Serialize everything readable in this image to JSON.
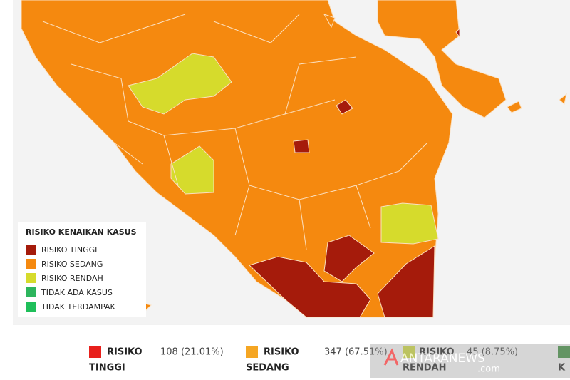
{
  "legend": {
    "title": "RISIKO KENAIKAN KASUS",
    "items": [
      "RISIKO TINGGI",
      "RISIKO SEDANG",
      "RISIKO RENDAH",
      "TIDAK ADA KASUS",
      "TIDAK TERDAMPAK"
    ]
  },
  "summary": [
    {
      "line1": "RISIKO",
      "line2": "TINGGI",
      "count": "108 (21.01%)"
    },
    {
      "line1": "RISIKO",
      "line2": "SEDANG",
      "count": "347 (67.51%)"
    },
    {
      "line1": "RISIKO",
      "line2": "RENDAH",
      "count": "45 (8.75%)"
    },
    {
      "line2": "K"
    }
  ],
  "watermark": {
    "name": "ANTARANEWS",
    "suffix": ".com"
  }
}
